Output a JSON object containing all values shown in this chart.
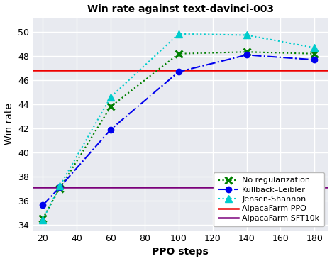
{
  "title": "Win rate against text-davinci-003",
  "xlabel": "PPO steps",
  "ylabel": "Win rate",
  "x_ticks": [
    20,
    40,
    60,
    80,
    100,
    120,
    140,
    160,
    180
  ],
  "xlim": [
    14,
    188
  ],
  "ylim": [
    33.5,
    51.2
  ],
  "y_ticks": [
    34,
    36,
    38,
    40,
    42,
    44,
    46,
    48,
    50
  ],
  "no_reg": {
    "x": [
      20,
      30,
      60,
      100,
      140,
      180
    ],
    "y": [
      34.5,
      37.0,
      43.8,
      48.2,
      48.35,
      48.2
    ],
    "color": "#008000",
    "linestyle": "dotted",
    "marker": "x",
    "label": "No regularization"
  },
  "kl": {
    "x": [
      20,
      30,
      60,
      100,
      140,
      180
    ],
    "y": [
      35.6,
      37.1,
      41.9,
      46.7,
      48.1,
      47.7
    ],
    "color": "#0000ee",
    "linestyle": "dashdot",
    "marker": "o",
    "label": "Kullback–Leibler"
  },
  "js": {
    "x": [
      20,
      30,
      60,
      100,
      140,
      180
    ],
    "y": [
      34.4,
      37.2,
      44.6,
      49.85,
      49.75,
      48.7
    ],
    "color": "#00cccc",
    "linestyle": "dotted",
    "marker": "^",
    "label": "Jensen-Shannon"
  },
  "alpaca_ppo": {
    "y": 46.8,
    "color": "#ee0000",
    "label": "AlpacaFarm PPO"
  },
  "alpaca_sft": {
    "y": 37.1,
    "color": "#7b007b",
    "label": "AlpacaFarm SFT10k"
  },
  "bg_color": "#e8eaf0",
  "grid_color": "#ffffff",
  "title_fontsize": 10,
  "label_fontsize": 10,
  "tick_fontsize": 9
}
